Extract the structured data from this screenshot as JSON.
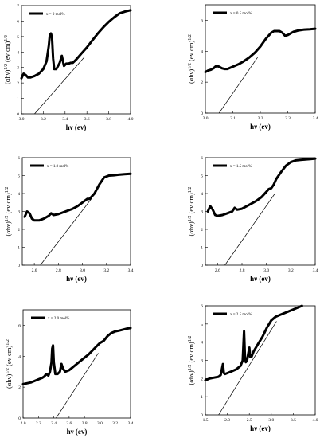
{
  "chart_data": [
    {
      "type": "line",
      "legend": "x = 0 mol%",
      "legend_position": "top-left",
      "xlabel": "hν (ev)",
      "ylabel": "(αhν)1/2 (ev cm)1/2",
      "xlim": [
        3.0,
        4.0
      ],
      "ylim": [
        0,
        7
      ],
      "xticks": [
        "3.0",
        "3.2",
        "3.4",
        "3.6",
        "3.8",
        "4.0"
      ],
      "yticks": [
        "0",
        "1",
        "2",
        "3",
        "4",
        "5",
        "6",
        "7"
      ],
      "series": [
        {
          "role": "absorption",
          "x": [
            3.0,
            3.02,
            3.04,
            3.06,
            3.08,
            3.12,
            3.16,
            3.2,
            3.23,
            3.25,
            3.26,
            3.27,
            3.28,
            3.29,
            3.3,
            3.32,
            3.35,
            3.37,
            3.38,
            3.39,
            3.41,
            3.43,
            3.45,
            3.47,
            3.5,
            3.55,
            3.6,
            3.65,
            3.7,
            3.75,
            3.8,
            3.85,
            3.9,
            3.95,
            4.0
          ],
          "y": [
            2.3,
            2.6,
            2.5,
            2.35,
            2.35,
            2.45,
            2.6,
            2.9,
            3.4,
            4.4,
            5.1,
            5.2,
            4.9,
            3.6,
            2.9,
            2.9,
            3.3,
            3.75,
            3.4,
            3.1,
            3.25,
            3.25,
            3.3,
            3.3,
            3.5,
            3.9,
            4.3,
            4.75,
            5.2,
            5.6,
            5.95,
            6.25,
            6.5,
            6.62,
            6.7
          ]
        },
        {
          "role": "tangent",
          "x": [
            3.12,
            3.58
          ],
          "y": [
            0,
            3.7
          ]
        }
      ]
    },
    {
      "type": "line",
      "legend": "x = 0.5 mol%",
      "legend_position": "top-left",
      "xlabel": "hν (ev)",
      "ylabel": "(αhν)1/2 (ev cm)1/2",
      "xlim": [
        3.0,
        3.4
      ],
      "ylim": [
        0,
        7
      ],
      "xticks": [
        "3.0",
        "3.1",
        "3.2",
        "3.3",
        "3.4"
      ],
      "yticks": [
        "0",
        "2",
        "4",
        "6"
      ],
      "series": [
        {
          "role": "absorption",
          "x": [
            3.0,
            3.01,
            3.02,
            3.03,
            3.04,
            3.05,
            3.06,
            3.07,
            3.08,
            3.1,
            3.12,
            3.14,
            3.16,
            3.18,
            3.2,
            3.22,
            3.24,
            3.25,
            3.26,
            3.27,
            3.28,
            3.29,
            3.3,
            3.31,
            3.32,
            3.34,
            3.36,
            3.38,
            3.4
          ],
          "y": [
            2.65,
            2.75,
            2.8,
            2.9,
            3.05,
            3.0,
            2.9,
            2.85,
            2.85,
            3.0,
            3.15,
            3.35,
            3.6,
            3.9,
            4.3,
            4.8,
            5.2,
            5.3,
            5.3,
            5.3,
            5.2,
            5.0,
            5.05,
            5.15,
            5.25,
            5.35,
            5.4,
            5.42,
            5.45
          ]
        },
        {
          "role": "tangent",
          "x": [
            3.05,
            3.19
          ],
          "y": [
            0,
            3.6
          ]
        }
      ]
    },
    {
      "type": "line",
      "legend": "x = 1.0 mol%",
      "legend_position": "top-left",
      "xlabel": "hν (ev)",
      "ylabel": "(αhν)1/2 (ev cm)1/2",
      "xlim": [
        2.5,
        3.4
      ],
      "ylim": [
        0,
        6
      ],
      "xticks": [
        "2.6",
        "2.8",
        "3.0",
        "3.2",
        "3.4"
      ],
      "yticks": [
        "0",
        "1",
        "2",
        "3",
        "4",
        "5",
        "6"
      ],
      "series": [
        {
          "role": "absorption",
          "x": [
            2.52,
            2.54,
            2.56,
            2.58,
            2.6,
            2.64,
            2.68,
            2.72,
            2.74,
            2.76,
            2.8,
            2.84,
            2.88,
            2.92,
            2.96,
            3.0,
            3.04,
            3.06,
            3.08,
            3.1,
            3.14,
            3.18,
            3.22,
            3.26,
            3.3,
            3.35,
            3.4
          ],
          "y": [
            2.7,
            3.0,
            2.9,
            2.6,
            2.5,
            2.5,
            2.6,
            2.75,
            2.9,
            2.8,
            2.85,
            2.95,
            3.05,
            3.15,
            3.3,
            3.5,
            3.7,
            3.7,
            3.85,
            4.0,
            4.5,
            4.9,
            5.0,
            5.02,
            5.05,
            5.08,
            5.1
          ]
        },
        {
          "role": "tangent",
          "x": [
            2.65,
            3.08
          ],
          "y": [
            0,
            3.75
          ]
        }
      ]
    },
    {
      "type": "line",
      "legend": "x = 1.5 mol%",
      "legend_position": "top-left",
      "xlabel": "hν (ev)",
      "ylabel": "(αhν)1/2 (ev cm)1/2",
      "xlim": [
        2.5,
        3.4
      ],
      "ylim": [
        0,
        6
      ],
      "xticks": [
        "2.6",
        "2.8",
        "3.0",
        "3.2",
        "3.4"
      ],
      "yticks": [
        "0",
        "1",
        "2",
        "3",
        "4",
        "5",
        "6"
      ],
      "series": [
        {
          "role": "absorption",
          "x": [
            2.52,
            2.54,
            2.56,
            2.58,
            2.6,
            2.64,
            2.68,
            2.72,
            2.74,
            2.76,
            2.8,
            2.84,
            2.88,
            2.92,
            2.96,
            3.0,
            3.02,
            3.04,
            3.06,
            3.08,
            3.12,
            3.16,
            3.2,
            3.24,
            3.28,
            3.32,
            3.36,
            3.4
          ],
          "y": [
            3.0,
            3.3,
            3.1,
            2.8,
            2.75,
            2.8,
            2.9,
            3.0,
            3.2,
            3.1,
            3.15,
            3.3,
            3.45,
            3.6,
            3.8,
            4.1,
            4.25,
            4.3,
            4.5,
            4.8,
            5.2,
            5.55,
            5.75,
            5.85,
            5.88,
            5.9,
            5.92,
            5.95
          ]
        },
        {
          "role": "tangent",
          "x": [
            2.66,
            3.07
          ],
          "y": [
            0,
            4.0
          ]
        }
      ]
    },
    {
      "type": "line",
      "legend": "x = 2.0 mol%",
      "legend_position": "top-left",
      "xlabel": "hν (ev)",
      "ylabel": "(αhν)1/2 (ev cm)1/2",
      "xlim": [
        2.0,
        3.4
      ],
      "ylim": [
        0,
        7
      ],
      "xticks": [
        "2.0",
        "2.2",
        "2.4",
        "2.6",
        "2.8",
        "3.0",
        "3.2",
        "3.4"
      ],
      "yticks": [
        "0",
        "2",
        "4",
        "6"
      ],
      "series": [
        {
          "role": "absorption",
          "x": [
            2.0,
            2.05,
            2.1,
            2.15,
            2.2,
            2.25,
            2.28,
            2.3,
            2.33,
            2.35,
            2.37,
            2.38,
            2.39,
            2.4,
            2.42,
            2.45,
            2.48,
            2.5,
            2.52,
            2.55,
            2.6,
            2.65,
            2.7,
            2.75,
            2.8,
            2.85,
            2.9,
            2.95,
            3.0,
            3.05,
            3.1,
            3.15,
            3.2,
            3.25,
            3.3,
            3.35,
            3.4
          ],
          "y": [
            2.2,
            2.25,
            2.3,
            2.4,
            2.5,
            2.6,
            2.7,
            2.85,
            2.75,
            3.0,
            3.6,
            4.5,
            4.7,
            3.6,
            2.85,
            2.85,
            3.0,
            3.5,
            3.2,
            3.0,
            3.1,
            3.3,
            3.5,
            3.7,
            3.9,
            4.1,
            4.35,
            4.6,
            4.85,
            5.0,
            5.3,
            5.5,
            5.6,
            5.65,
            5.72,
            5.78,
            5.82
          ]
        },
        {
          "role": "tangent",
          "x": [
            2.43,
            2.98
          ],
          "y": [
            0,
            4.2
          ]
        }
      ]
    },
    {
      "type": "line",
      "legend": "x = 2.5 mol%",
      "legend_position": "top-left",
      "xlabel": "hν (ev)",
      "ylabel": "(αhν)1/2 (ev cm)1/2",
      "xlim": [
        1.5,
        4.0
      ],
      "ylim": [
        0,
        6
      ],
      "xticks": [
        "1.5",
        "2.0",
        "2.5",
        "3.0",
        "3.5",
        "4.0"
      ],
      "yticks": [
        "0",
        "1",
        "2",
        "3",
        "4",
        "5",
        "6"
      ],
      "series": [
        {
          "role": "absorption",
          "x": [
            1.5,
            1.6,
            1.7,
            1.8,
            1.85,
            1.9,
            1.92,
            1.95,
            2.0,
            2.1,
            2.2,
            2.3,
            2.35,
            2.38,
            2.4,
            2.42,
            2.45,
            2.5,
            2.52,
            2.55,
            2.6,
            2.7,
            2.8,
            2.9,
            3.0,
            3.1,
            3.2,
            3.3,
            3.4,
            3.5,
            3.6,
            3.7
          ],
          "y": [
            1.9,
            2.0,
            2.05,
            2.1,
            2.2,
            2.8,
            2.3,
            2.25,
            2.3,
            2.4,
            2.5,
            2.7,
            3.0,
            4.6,
            3.2,
            2.9,
            3.0,
            3.7,
            3.2,
            3.2,
            3.5,
            3.9,
            4.3,
            4.8,
            5.2,
            5.4,
            5.5,
            5.6,
            5.7,
            5.8,
            5.9,
            6.0
          ]
        },
        {
          "role": "tangent",
          "x": [
            1.8,
            3.12
          ],
          "y": [
            0,
            5.15
          ]
        }
      ]
    }
  ]
}
